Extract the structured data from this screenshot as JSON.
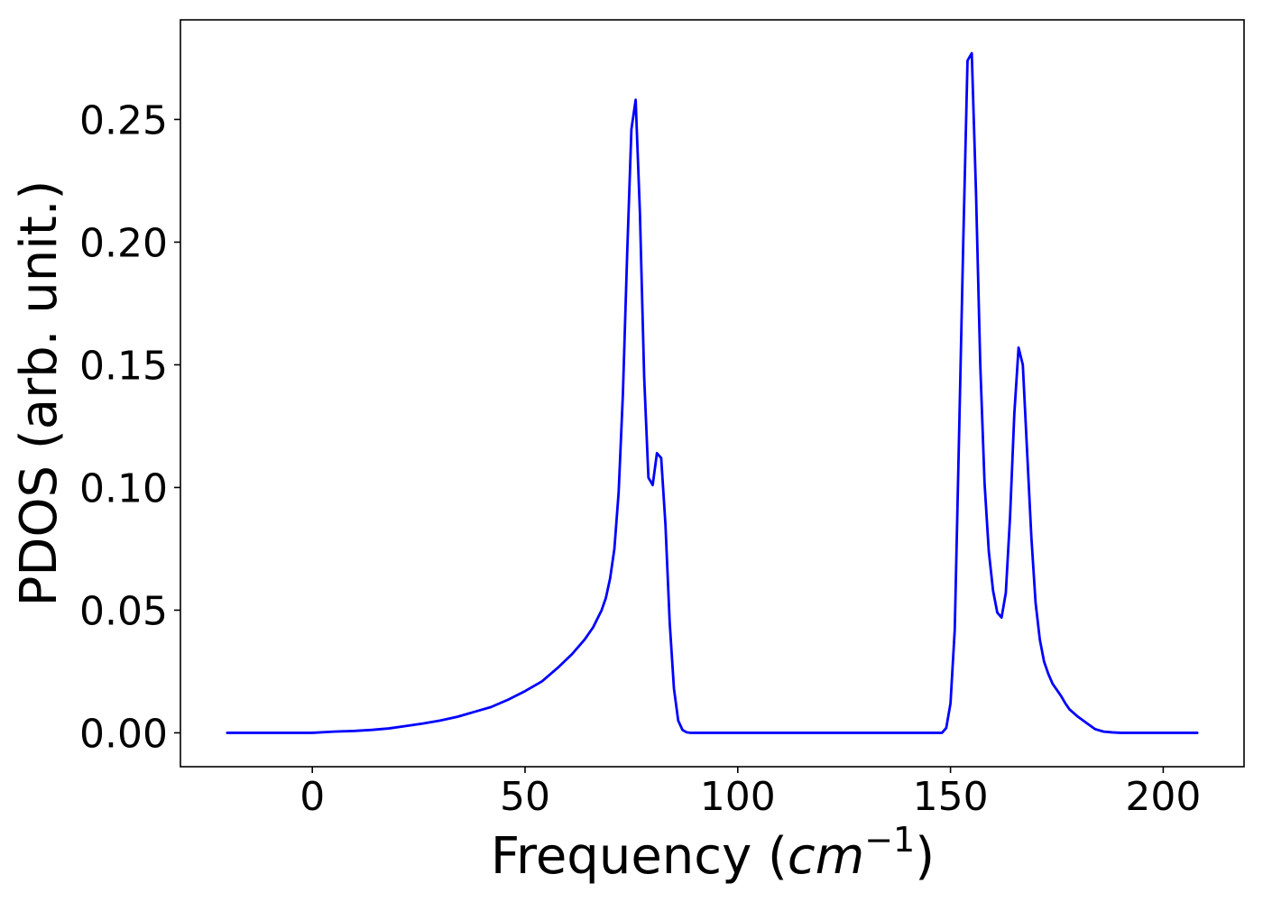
{
  "chart_data": {
    "type": "line",
    "xlabel_main": "Frequency (",
    "xlabel_math": "cm",
    "xlabel_sup": "−1",
    "xlabel_close": ")",
    "ylabel": "PDOS (arb. unit.)",
    "xlim": [
      -31,
      219
    ],
    "ylim": [
      -0.0138,
      0.2906
    ],
    "x_ticks": [
      0,
      50,
      100,
      150,
      200
    ],
    "x_tick_labels": [
      "0",
      "50",
      "100",
      "150",
      "200"
    ],
    "y_ticks": [
      0,
      0.05,
      0.1,
      0.15,
      0.2,
      0.25
    ],
    "y_tick_labels": [
      "0.00",
      "0.05",
      "0.10",
      "0.15",
      "0.20",
      "0.25"
    ],
    "grid": false,
    "series": [
      {
        "color": "#0000ff",
        "x": [
          -20,
          0,
          5,
          10,
          14,
          18,
          22,
          26,
          30,
          34,
          38,
          42,
          46,
          50,
          54,
          58,
          61,
          64,
          66,
          68,
          69,
          70,
          71,
          72,
          73,
          74,
          75,
          76,
          77,
          78,
          79,
          80,
          81,
          82,
          83,
          84,
          85,
          86,
          87,
          88,
          89,
          90,
          91,
          92,
          95,
          120,
          148,
          149,
          150,
          151,
          152,
          153,
          154,
          155,
          156,
          157,
          158,
          159,
          160,
          161,
          162,
          163,
          164,
          165,
          166,
          167,
          168,
          169,
          170,
          171,
          172,
          173,
          174,
          175,
          176,
          177,
          178,
          180,
          182,
          184,
          186,
          188,
          190,
          191,
          192,
          193,
          195,
          200,
          208
        ],
        "y": [
          0,
          0,
          0.0005,
          0.0008,
          0.0012,
          0.0018,
          0.0028,
          0.0038,
          0.005,
          0.0065,
          0.0085,
          0.0105,
          0.0135,
          0.017,
          0.021,
          0.027,
          0.032,
          0.038,
          0.043,
          0.05,
          0.055,
          0.063,
          0.075,
          0.098,
          0.138,
          0.195,
          0.246,
          0.258,
          0.212,
          0.145,
          0.104,
          0.101,
          0.114,
          0.112,
          0.085,
          0.045,
          0.018,
          0.005,
          0.0012,
          0.0002,
          0,
          0,
          0,
          0,
          0,
          0,
          0,
          0.002,
          0.012,
          0.042,
          0.12,
          0.2,
          0.274,
          0.277,
          0.22,
          0.15,
          0.102,
          0.074,
          0.058,
          0.049,
          0.047,
          0.057,
          0.088,
          0.13,
          0.157,
          0.15,
          0.115,
          0.08,
          0.053,
          0.038,
          0.029,
          0.024,
          0.02,
          0.0175,
          0.015,
          0.012,
          0.0095,
          0.0065,
          0.004,
          0.0015,
          0.0005,
          0.0002,
          0,
          0,
          0,
          0,
          0,
          0,
          0
        ]
      }
    ]
  }
}
